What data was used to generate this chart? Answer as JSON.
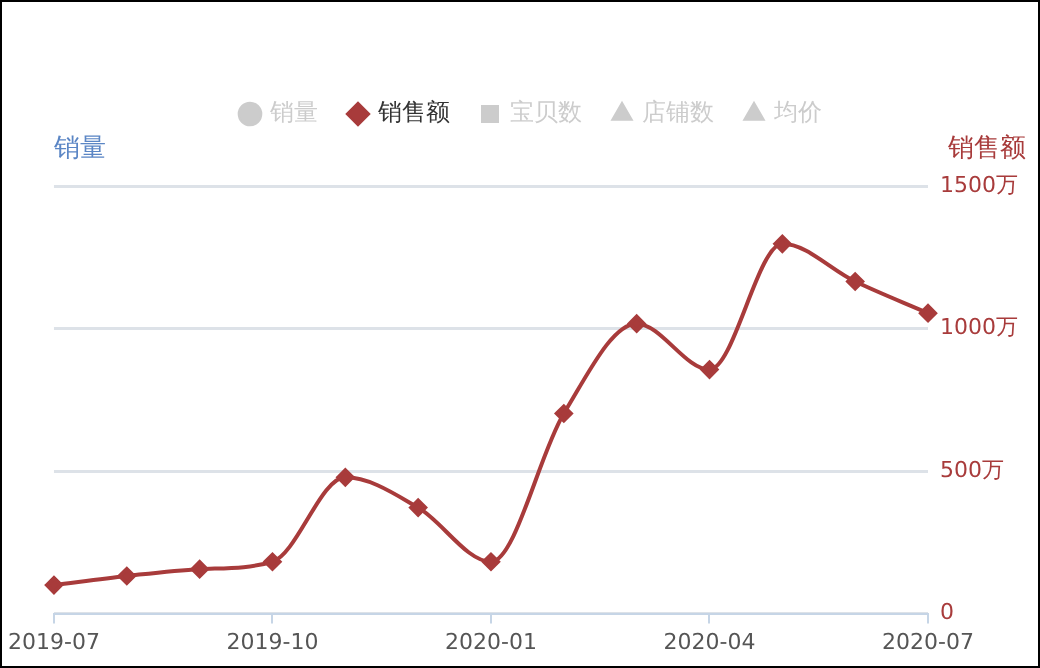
{
  "chart_data": {
    "type": "line",
    "ylabel": "销量",
    "y2label": "销售额",
    "categories": [
      "2019-07",
      null,
      null,
      "2019-10",
      null,
      null,
      "2020-01",
      null,
      null,
      "2020-04",
      null,
      null,
      "2020-07"
    ],
    "series": [
      {
        "name": "销量",
        "color": "#cccccc",
        "marker": "circle",
        "values": [
          null,
          null,
          null,
          null,
          null,
          null,
          null,
          null,
          null,
          null,
          null,
          null,
          null
        ]
      },
      {
        "name": "销售额",
        "color": "#a83b3b",
        "marker": "diamond",
        "axis": "y2",
        "values": [
          100,
          132,
          156,
          182,
          478,
          372,
          182,
          702,
          1017,
          856,
          1297,
          1165,
          1054
        ]
      },
      {
        "name": "宝贝数",
        "color": "#cccccc",
        "marker": "square",
        "values": [
          null,
          null,
          null,
          null,
          null,
          null,
          null,
          null,
          null,
          null,
          null,
          null,
          null
        ]
      },
      {
        "name": "店铺数",
        "color": "#cccccc",
        "marker": "triangle",
        "values": [
          null,
          null,
          null,
          null,
          null,
          null,
          null,
          null,
          null,
          null,
          null,
          null,
          null
        ]
      },
      {
        "name": "均价",
        "color": "#cccccc",
        "marker": "triangle",
        "values": [
          null,
          null,
          null,
          null,
          null,
          null,
          null,
          null,
          null,
          null,
          null,
          null,
          null
        ]
      }
    ],
    "y2lim": [
      0,
      1500
    ],
    "y2ticks": [
      0,
      {
        "value": 500,
        "label": "500万"
      },
      {
        "value": 1000,
        "label": "1000万"
      },
      {
        "value": 1500,
        "label": "1500万"
      }
    ],
    "grid": "y",
    "legend": "top"
  }
}
